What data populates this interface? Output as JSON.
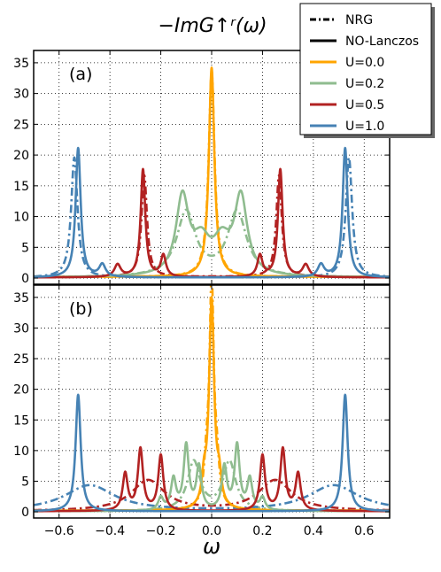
{
  "chart_data": {
    "type": "line",
    "title": "−ImG↑ʳ(ω)",
    "xlabel": "ω",
    "ylabel": "",
    "xlim": [
      -0.7,
      0.7
    ],
    "xticks": [
      -0.6,
      -0.4,
      -0.2,
      0.0,
      0.2,
      0.4,
      0.6
    ],
    "xtick_labels": [
      "−0.6",
      "−0.4",
      "−0.2",
      "0.0",
      "0.2",
      "0.4",
      "0.6"
    ],
    "grid": true,
    "legend_position": "top-right",
    "legend": [
      {
        "label": "NRG",
        "style": "dashdot",
        "color": "#000000"
      },
      {
        "label": "NO-Lanczos",
        "style": "solid",
        "color": "#000000"
      },
      {
        "label": "U=0.0",
        "style": "solid",
        "color": "#ffa500"
      },
      {
        "label": "U=0.2",
        "style": "solid",
        "color": "#8fbc8f"
      },
      {
        "label": "U=0.5",
        "style": "solid",
        "color": "#b22222"
      },
      {
        "label": "U=1.0",
        "style": "solid",
        "color": "#4682b4"
      }
    ],
    "colors": {
      "U=0.0": "#ffa500",
      "U=0.2": "#8fbc8f",
      "U=0.5": "#b22222",
      "U=1.0": "#4682b4"
    },
    "panels": [
      {
        "label": "(a)",
        "ylim": [
          -1,
          37
        ],
        "yticks": [
          0,
          5,
          10,
          15,
          20,
          25,
          30,
          35
        ],
        "series": [
          {
            "name": "U=0.0",
            "method": "NO-Lanczos",
            "color": "#ffa500",
            "peaks": [
              {
                "x": 0.0,
                "height": 34,
                "width": 0.013
              }
            ],
            "baseline": 0.2
          },
          {
            "name": "U=0.0",
            "method": "NRG",
            "color": "#ffa500",
            "peaks": [
              {
                "x": 0.0,
                "height": 33.5,
                "width": 0.014
              }
            ],
            "baseline": 0.2
          },
          {
            "name": "U=0.2",
            "method": "NO-Lanczos",
            "color": "#8fbc8f",
            "peaks": [
              {
                "x": -0.115,
                "height": 12.5,
                "width": 0.03
              },
              {
                "x": 0.115,
                "height": 12.5,
                "width": 0.03
              },
              {
                "x": -0.04,
                "height": 5,
                "width": 0.04
              },
              {
                "x": 0.04,
                "height": 5,
                "width": 0.04
              }
            ],
            "baseline": 0.1
          },
          {
            "name": "U=0.2",
            "method": "NRG",
            "color": "#8fbc8f",
            "peaks": [
              {
                "x": -0.1,
                "height": 10.5,
                "width": 0.045
              },
              {
                "x": 0.1,
                "height": 10.5,
                "width": 0.045
              }
            ],
            "baseline": 0.1
          },
          {
            "name": "U=0.5",
            "method": "NO-Lanczos",
            "color": "#b22222",
            "peaks": [
              {
                "x": -0.27,
                "height": 17.5,
                "width": 0.011
              },
              {
                "x": 0.27,
                "height": 17.5,
                "width": 0.011
              },
              {
                "x": -0.19,
                "height": 3.5,
                "width": 0.012
              },
              {
                "x": 0.19,
                "height": 3.5,
                "width": 0.012
              },
              {
                "x": -0.37,
                "height": 2,
                "width": 0.015
              },
              {
                "x": 0.37,
                "height": 2,
                "width": 0.015
              }
            ],
            "baseline": 0.1
          },
          {
            "name": "U=0.5",
            "method": "NRG",
            "color": "#b22222",
            "peaks": [
              {
                "x": -0.265,
                "height": 16.5,
                "width": 0.013
              },
              {
                "x": 0.265,
                "height": 16.5,
                "width": 0.013
              }
            ],
            "baseline": 0.2
          },
          {
            "name": "U=1.0",
            "method": "NO-Lanczos",
            "color": "#4682b4",
            "peaks": [
              {
                "x": -0.525,
                "height": 21,
                "width": 0.012
              },
              {
                "x": 0.525,
                "height": 21,
                "width": 0.012
              },
              {
                "x": -0.43,
                "height": 2,
                "width": 0.015
              },
              {
                "x": 0.43,
                "height": 2,
                "width": 0.015
              }
            ],
            "baseline": 0.1
          },
          {
            "name": "U=1.0",
            "method": "NRG",
            "color": "#4682b4",
            "peaks": [
              {
                "x": -0.54,
                "height": 19.5,
                "width": 0.015
              },
              {
                "x": 0.54,
                "height": 19.5,
                "width": 0.015
              }
            ],
            "baseline": 0.1
          }
        ]
      },
      {
        "label": "(b)",
        "ylim": [
          -1,
          37
        ],
        "yticks": [
          0,
          5,
          10,
          15,
          20,
          25,
          30,
          35
        ],
        "series": [
          {
            "name": "U=0.0",
            "method": "NO-Lanczos",
            "color": "#ffa500",
            "peaks": [
              {
                "x": 0.0,
                "height": 34,
                "width": 0.012
              },
              {
                "x": -0.03,
                "height": 4,
                "width": 0.01
              },
              {
                "x": 0.03,
                "height": 4,
                "width": 0.01
              }
            ],
            "baseline": 0.2
          },
          {
            "name": "U=0.0",
            "method": "NRG",
            "color": "#ffa500",
            "peaks": [
              {
                "x": 0.0,
                "height": 36,
                "width": 0.01
              },
              {
                "x": -0.02,
                "height": 6,
                "width": 0.012
              },
              {
                "x": 0.02,
                "height": 6,
                "width": 0.012
              }
            ],
            "baseline": 0.2
          },
          {
            "name": "U=0.2",
            "method": "NO-Lanczos",
            "color": "#8fbc8f",
            "peaks": [
              {
                "x": -0.1,
                "height": 10.5,
                "width": 0.012
              },
              {
                "x": 0.1,
                "height": 10.5,
                "width": 0.012
              },
              {
                "x": -0.15,
                "height": 5,
                "width": 0.012
              },
              {
                "x": 0.15,
                "height": 5,
                "width": 0.012
              },
              {
                "x": -0.05,
                "height": 7,
                "width": 0.012
              },
              {
                "x": 0.05,
                "height": 7,
                "width": 0.012
              },
              {
                "x": -0.2,
                "height": 2,
                "width": 0.012
              },
              {
                "x": 0.2,
                "height": 2,
                "width": 0.012
              }
            ],
            "baseline": 0.1
          },
          {
            "name": "U=0.2",
            "method": "NRG",
            "color": "#8fbc8f",
            "peaks": [
              {
                "x": -0.07,
                "height": 8,
                "width": 0.03
              },
              {
                "x": 0.07,
                "height": 8,
                "width": 0.03
              }
            ],
            "baseline": 0.1
          },
          {
            "name": "U=0.5",
            "method": "NO-Lanczos",
            "color": "#b22222",
            "peaks": [
              {
                "x": -0.28,
                "height": 10,
                "width": 0.012
              },
              {
                "x": 0.28,
                "height": 10,
                "width": 0.012
              },
              {
                "x": -0.2,
                "height": 9,
                "width": 0.012
              },
              {
                "x": 0.2,
                "height": 9,
                "width": 0.012
              },
              {
                "x": -0.34,
                "height": 6,
                "width": 0.012
              },
              {
                "x": 0.34,
                "height": 6,
                "width": 0.012
              }
            ],
            "baseline": 0.1
          },
          {
            "name": "U=0.5",
            "method": "NRG",
            "color": "#b22222",
            "peaks": [
              {
                "x": -0.25,
                "height": 5,
                "width": 0.08
              },
              {
                "x": 0.25,
                "height": 5,
                "width": 0.08
              }
            ],
            "baseline": 0.1
          },
          {
            "name": "U=1.0",
            "method": "NO-Lanczos",
            "color": "#4682b4",
            "peaks": [
              {
                "x": -0.525,
                "height": 19,
                "width": 0.012
              },
              {
                "x": 0.525,
                "height": 19,
                "width": 0.012
              }
            ],
            "baseline": 0.1
          },
          {
            "name": "U=1.0",
            "method": "NRG",
            "color": "#4682b4",
            "peaks": [
              {
                "x": -0.48,
                "height": 4.2,
                "width": 0.12
              },
              {
                "x": 0.48,
                "height": 4.2,
                "width": 0.12
              }
            ],
            "baseline": 0.1
          }
        ]
      }
    ]
  }
}
